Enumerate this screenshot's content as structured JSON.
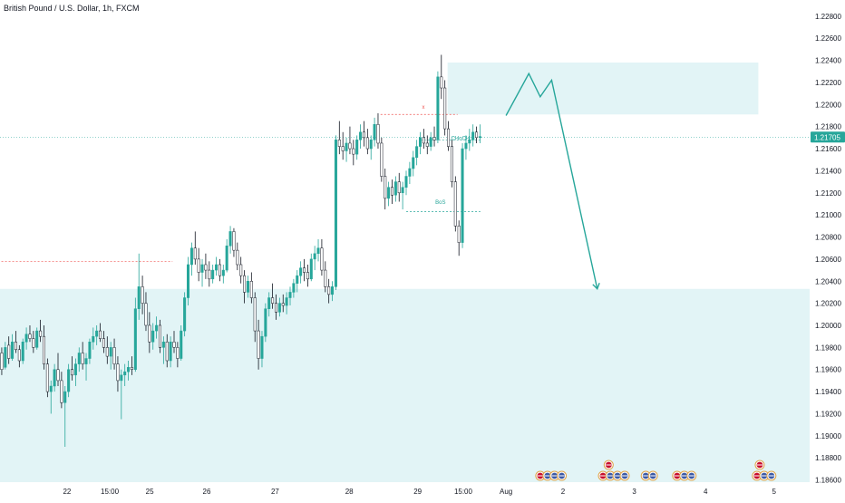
{
  "chart_data": {
    "type": "candlestick",
    "title": "British Pound / U.S. Dollar, 1h, FXCM",
    "ylim": [
      1.1858,
      1.2293
    ],
    "y_ticks": [
      "1.22800",
      "1.22600",
      "1.22400",
      "1.22200",
      "1.22000",
      "1.21800",
      "1.21600",
      "1.21400",
      "1.21200",
      "1.21000",
      "1.20800",
      "1.20600",
      "1.20400",
      "1.20200",
      "1.20000",
      "1.19800",
      "1.19600",
      "1.19400",
      "1.19200",
      "1.19000",
      "1.18800",
      "1.18600"
    ],
    "x_ticks": [
      {
        "label": "22",
        "bar": 23
      },
      {
        "label": "15:00",
        "bar": 38
      },
      {
        "label": "25",
        "bar": 52
      },
      {
        "label": "26",
        "bar": 72
      },
      {
        "label": "27",
        "bar": 96
      },
      {
        "label": "28",
        "bar": 122
      },
      {
        "label": "29",
        "bar": 146
      },
      {
        "label": "15:00",
        "bar": 162
      },
      {
        "label": "Aug",
        "bar": 177
      },
      {
        "label": "2",
        "bar": 197
      },
      {
        "label": "3",
        "bar": 222
      },
      {
        "label": "4",
        "bar": 247
      },
      {
        "label": "5",
        "bar": 271
      }
    ],
    "bars_visible": 284,
    "current_price": {
      "value": 1.21705,
      "label": "1.21705",
      "color": "#26a69a"
    },
    "candle_colors": {
      "up": "#26a69a",
      "down": "#ffffff",
      "border": "#131722"
    },
    "zones": [
      {
        "name": "supply-zone",
        "x_start_bar": 157,
        "x_end_bar": 266,
        "y_top": 1.2238,
        "y_bottom": 1.2191,
        "color": "#e2f4f6"
      },
      {
        "name": "demand-zone",
        "x_start_bar": 0,
        "x_end_bar": 284,
        "y_top": 1.2033,
        "y_bottom": 1.1858,
        "color": "#e2f4f6"
      }
    ],
    "projection_path": [
      [
        177,
        1.219
      ],
      [
        185,
        1.2228
      ],
      [
        189,
        1.2207
      ],
      [
        193,
        1.2222
      ],
      [
        209,
        1.2033
      ]
    ],
    "projection_color": "#26a69a",
    "levels": [
      {
        "name": "x-level",
        "bar_start": 133,
        "bar_end": 160,
        "y": 1.2191,
        "color": "#ef5350"
      },
      {
        "name": "bos-level",
        "bar_start": 142,
        "bar_end": 168,
        "y": 1.2103,
        "color": "#26a69a"
      },
      {
        "name": "choch-level",
        "bar_start": 147,
        "bar_end": 168,
        "y": 1.2168,
        "color": "#26a69a"
      },
      {
        "name": "left-level",
        "bar_start": 0,
        "bar_end": 60,
        "y": 1.2058,
        "color": "#ef5350"
      }
    ],
    "annotations": [
      {
        "text": "x",
        "bar": 148,
        "y": 1.2196,
        "color": "#ef5350"
      },
      {
        "text": "BoS",
        "bar": 154,
        "y": 1.211,
        "color": "#26a69a"
      },
      {
        "text": "CHoCH",
        "bar": 161,
        "y": 1.2168,
        "color": "#26a69a"
      }
    ],
    "event_groups": [
      {
        "bar": 189,
        "icons": [
          "gb",
          "us"
        ]
      },
      {
        "bar": 194,
        "icons": [
          "us",
          "us"
        ]
      },
      {
        "bar": 211,
        "icons": [
          "gb",
          "us",
          "us",
          "us"
        ]
      },
      {
        "bar": 213,
        "icons": [
          "gb"
        ],
        "row": 1
      },
      {
        "bar": 226,
        "icons": [
          "us",
          "us"
        ]
      },
      {
        "bar": 237,
        "icons": [
          "gb",
          "us",
          "us"
        ]
      },
      {
        "bar": 265,
        "icons": [
          "gb",
          "us",
          "us"
        ]
      },
      {
        "bar": 266,
        "icons": [
          "gb"
        ],
        "row": 1
      }
    ],
    "ohlc": [
      [
        1.1975,
        1.198,
        1.1955,
        1.196
      ],
      [
        1.1962,
        1.1985,
        1.196,
        1.198
      ],
      [
        1.1982,
        1.199,
        1.1965,
        1.197
      ],
      [
        1.197,
        1.1992,
        1.1968,
        1.1985
      ],
      [
        1.1985,
        1.1995,
        1.1975,
        1.1978
      ],
      [
        1.1978,
        1.1982,
        1.1962,
        1.1968
      ],
      [
        1.1968,
        1.1988,
        1.1965,
        1.1985
      ],
      [
        1.1985,
        1.1998,
        1.1978,
        1.1992
      ],
      [
        1.1992,
        1.2,
        1.1985,
        1.1988
      ],
      [
        1.1988,
        1.1995,
        1.1975,
        1.198
      ],
      [
        1.198,
        1.1998,
        1.1978,
        1.1995
      ],
      [
        1.1995,
        1.2005,
        1.1985,
        1.199
      ],
      [
        1.199,
        1.2,
        1.196,
        1.1965
      ],
      [
        1.1965,
        1.197,
        1.1935,
        1.194
      ],
      [
        1.194,
        1.195,
        1.192,
        1.1945
      ],
      [
        1.1945,
        1.1965,
        1.194,
        1.196
      ],
      [
        1.196,
        1.1975,
        1.1945,
        1.195
      ],
      [
        1.195,
        1.1958,
        1.1925,
        1.193
      ],
      [
        1.193,
        1.1945,
        1.189,
        1.194
      ],
      [
        1.194,
        1.1965,
        1.1935,
        1.196
      ],
      [
        1.196,
        1.1972,
        1.195,
        1.1955
      ],
      [
        1.1955,
        1.197,
        1.1945,
        1.1965
      ],
      [
        1.1965,
        1.198,
        1.1958,
        1.1975
      ],
      [
        1.1975,
        1.1985,
        1.196,
        1.1965
      ],
      [
        1.1965,
        1.1975,
        1.195,
        1.197
      ],
      [
        1.197,
        1.1988,
        1.1965,
        1.1985
      ],
      [
        1.1985,
        1.1998,
        1.1978,
        1.199
      ],
      [
        1.199,
        1.2,
        1.1982,
        1.1995
      ],
      [
        1.1995,
        1.2002,
        1.1985,
        1.1988
      ],
      [
        1.1988,
        1.1995,
        1.1975,
        1.198
      ],
      [
        1.198,
        1.199,
        1.1965,
        1.1972
      ],
      [
        1.1972,
        1.1985,
        1.196,
        1.198
      ],
      [
        1.198,
        1.1988,
        1.196,
        1.1965
      ],
      [
        1.1965,
        1.1972,
        1.194,
        1.195
      ],
      [
        1.195,
        1.196,
        1.1915,
        1.1955
      ],
      [
        1.1955,
        1.1965,
        1.1945,
        1.1958
      ],
      [
        1.1958,
        1.1968,
        1.195,
        1.1962
      ],
      [
        1.1962,
        1.1972,
        1.1955,
        1.196
      ],
      [
        1.196,
        1.2025,
        1.1958,
        1.2015
      ],
      [
        1.2015,
        1.2065,
        1.2005,
        1.2035
      ],
      [
        1.2035,
        1.2045,
        1.201,
        1.202
      ],
      [
        1.202,
        1.203,
        1.1995,
        1.2
      ],
      [
        1.2,
        1.2012,
        1.1975,
        1.1985
      ],
      [
        1.1985,
        1.2002,
        1.1978,
        1.1995
      ],
      [
        1.1995,
        1.2008,
        1.1988,
        1.2
      ],
      [
        1.2,
        1.2005,
        1.1975,
        1.198
      ],
      [
        1.198,
        1.199,
        1.1965,
        1.1985
      ],
      [
        1.1985,
        1.1992,
        1.1962,
        1.1968
      ],
      [
        1.1968,
        1.199,
        1.1962,
        1.1985
      ],
      [
        1.1985,
        1.1995,
        1.1975,
        1.198
      ],
      [
        1.198,
        1.1985,
        1.1962,
        1.197
      ],
      [
        1.197,
        1.2,
        1.1968,
        1.1995
      ],
      [
        1.1995,
        1.203,
        1.199,
        1.2025
      ],
      [
        1.2025,
        1.2062,
        1.2018,
        1.2055
      ],
      [
        1.2055,
        1.2075,
        1.2045,
        1.207
      ],
      [
        1.207,
        1.2085,
        1.2055,
        1.206
      ],
      [
        1.206,
        1.207,
        1.204,
        1.2048
      ],
      [
        1.2048,
        1.206,
        1.2035,
        1.2055
      ],
      [
        1.2055,
        1.2065,
        1.2042,
        1.205
      ],
      [
        1.205,
        1.2058,
        1.2035,
        1.2042
      ],
      [
        1.2042,
        1.2055,
        1.2038,
        1.205
      ],
      [
        1.205,
        1.2062,
        1.2045,
        1.2055
      ],
      [
        1.2055,
        1.206,
        1.204,
        1.2045
      ],
      [
        1.2045,
        1.2055,
        1.2038,
        1.205
      ],
      [
        1.205,
        1.2078,
        1.2048,
        1.2072
      ],
      [
        1.2072,
        1.209,
        1.2065,
        1.2085
      ],
      [
        1.2085,
        1.2088,
        1.2062,
        1.2068
      ],
      [
        1.2068,
        1.2075,
        1.205,
        1.2055
      ],
      [
        1.2055,
        1.2062,
        1.2038,
        1.2045
      ],
      [
        1.2045,
        1.205,
        1.202,
        1.203
      ],
      [
        1.203,
        1.2045,
        1.2025,
        1.204
      ],
      [
        1.204,
        1.2048,
        1.202,
        1.2025
      ],
      [
        1.2025,
        1.203,
        1.1985,
        1.1995
      ],
      [
        1.1995,
        1.2005,
        1.196,
        1.197
      ],
      [
        1.197,
        1.1995,
        1.1962,
        1.199
      ],
      [
        1.199,
        1.202,
        1.1985,
        1.2015
      ],
      [
        1.2015,
        1.203,
        1.2008,
        1.2025
      ],
      [
        1.2025,
        1.2038,
        1.2015,
        1.202
      ],
      [
        1.202,
        1.2028,
        1.2005,
        1.2012
      ],
      [
        1.2012,
        1.2025,
        1.2008,
        1.202
      ],
      [
        1.202,
        1.2028,
        1.2012,
        1.2018
      ],
      [
        1.2018,
        1.203,
        1.201,
        1.2025
      ],
      [
        1.2025,
        1.2035,
        1.2018,
        1.203
      ],
      [
        1.203,
        1.2042,
        1.2025,
        1.2038
      ],
      [
        1.2038,
        1.205,
        1.203,
        1.2045
      ],
      [
        1.2045,
        1.2058,
        1.2038,
        1.2052
      ],
      [
        1.2052,
        1.206,
        1.204,
        1.2048
      ],
      [
        1.2048,
        1.2055,
        1.2035,
        1.2042
      ],
      [
        1.2042,
        1.2065,
        1.204,
        1.206
      ],
      [
        1.206,
        1.2072,
        1.205,
        1.2065
      ],
      [
        1.2065,
        1.2078,
        1.2058,
        1.207
      ],
      [
        1.207,
        1.2078,
        1.2045,
        1.205
      ],
      [
        1.205,
        1.2058,
        1.203,
        1.2035
      ],
      [
        1.2035,
        1.2042,
        1.202,
        1.2028
      ],
      [
        1.2028,
        1.204,
        1.2022,
        1.2035
      ],
      [
        1.2035,
        1.2172,
        1.2032,
        1.2168
      ],
      [
        1.2168,
        1.2185,
        1.2155,
        1.2162
      ],
      [
        1.2162,
        1.2175,
        1.215,
        1.2158
      ],
      [
        1.2158,
        1.217,
        1.2148,
        1.2165
      ],
      [
        1.2165,
        1.218,
        1.2155,
        1.216
      ],
      [
        1.216,
        1.2168,
        1.2145,
        1.2155
      ],
      [
        1.2155,
        1.2172,
        1.215,
        1.2168
      ],
      [
        1.2168,
        1.2182,
        1.216,
        1.2175
      ],
      [
        1.2175,
        1.2185,
        1.2162,
        1.217
      ],
      [
        1.217,
        1.2178,
        1.2155,
        1.216
      ],
      [
        1.216,
        1.2172,
        1.215,
        1.2168
      ],
      [
        1.2168,
        1.2188,
        1.2162,
        1.2182
      ],
      [
        1.2182,
        1.2192,
        1.216,
        1.2165
      ],
      [
        1.2165,
        1.217,
        1.213,
        1.2135
      ],
      [
        1.2135,
        1.2142,
        1.2105,
        1.2115
      ],
      [
        1.2115,
        1.213,
        1.2108,
        1.2125
      ],
      [
        1.2125,
        1.2132,
        1.211,
        1.2118
      ],
      [
        1.2118,
        1.2135,
        1.2112,
        1.213
      ],
      [
        1.213,
        1.2138,
        1.2112,
        1.212
      ],
      [
        1.212,
        1.213,
        1.2105,
        1.2125
      ],
      [
        1.2125,
        1.214,
        1.2118,
        1.2135
      ],
      [
        1.2135,
        1.2148,
        1.2128,
        1.2142
      ],
      [
        1.2142,
        1.2158,
        1.2135,
        1.2152
      ],
      [
        1.2152,
        1.2168,
        1.2145,
        1.2162
      ],
      [
        1.2162,
        1.2175,
        1.2155,
        1.217
      ],
      [
        1.217,
        1.2178,
        1.216,
        1.2165
      ],
      [
        1.2165,
        1.2172,
        1.2155,
        1.2162
      ],
      [
        1.2162,
        1.2175,
        1.2158,
        1.217
      ],
      [
        1.217,
        1.218,
        1.2162,
        1.2168
      ],
      [
        1.2168,
        1.223,
        1.2165,
        1.2225
      ],
      [
        1.2225,
        1.2245,
        1.2205,
        1.2215
      ],
      [
        1.2215,
        1.2222,
        1.2172,
        1.2178
      ],
      [
        1.2178,
        1.2185,
        1.2158,
        1.2162
      ],
      [
        1.2162,
        1.2168,
        1.2125,
        1.213
      ],
      [
        1.213,
        1.2135,
        1.2085,
        1.209
      ],
      [
        1.209,
        1.2095,
        1.2063,
        1.2075
      ],
      [
        1.2075,
        1.2165,
        1.207,
        1.216
      ],
      [
        1.216,
        1.2172,
        1.215,
        1.2165
      ],
      [
        1.2165,
        1.2178,
        1.2158,
        1.2168
      ],
      [
        1.2168,
        1.2182,
        1.2162,
        1.2175
      ],
      [
        1.2175,
        1.218,
        1.2165,
        1.217
      ],
      [
        1.217,
        1.2182,
        1.2165,
        1.2171
      ]
    ],
    "bar_start_index": 0
  }
}
